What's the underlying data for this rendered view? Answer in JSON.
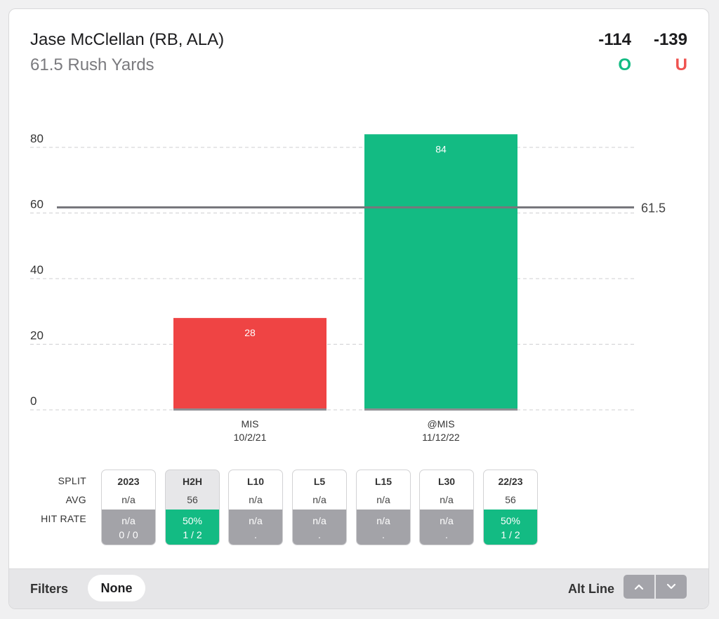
{
  "header": {
    "player": "Jase McClellan (RB, ALA)",
    "prop": "61.5 Rush Yards",
    "odds_over": "-114",
    "odds_under": "-139",
    "over_label": "O",
    "under_label": "U"
  },
  "chart_data": {
    "type": "bar",
    "categories": [
      "MIS",
      "@MIS"
    ],
    "dates": [
      "10/2/21",
      "11/12/22"
    ],
    "values": [
      28,
      84
    ],
    "bar_colors": [
      "#ef4444",
      "#13bb83"
    ],
    "line_value": 61.5,
    "line_label": "61.5",
    "ylim": [
      0,
      84
    ],
    "yticks": [
      0,
      20,
      40,
      60,
      80
    ],
    "grid": true
  },
  "splits": {
    "row_labels": {
      "split": "SPLIT",
      "avg": "AVG",
      "hit_rate": "HIT RATE"
    },
    "items": [
      {
        "label": "2023",
        "avg": "n/a",
        "pct": "n/a",
        "ratio": "0 / 0",
        "status": "neutral",
        "active": false
      },
      {
        "label": "H2H",
        "avg": "56",
        "pct": "50%",
        "ratio": "1 / 2",
        "status": "hit",
        "active": true
      },
      {
        "label": "L10",
        "avg": "n/a",
        "pct": "n/a",
        "ratio": ".",
        "status": "neutral",
        "active": false
      },
      {
        "label": "L5",
        "avg": "n/a",
        "pct": "n/a",
        "ratio": ".",
        "status": "neutral",
        "active": false
      },
      {
        "label": "L15",
        "avg": "n/a",
        "pct": "n/a",
        "ratio": ".",
        "status": "neutral",
        "active": false
      },
      {
        "label": "L30",
        "avg": "n/a",
        "pct": "n/a",
        "ratio": ".",
        "status": "neutral",
        "active": false
      },
      {
        "label": "22/23",
        "avg": "56",
        "pct": "50%",
        "ratio": "1 / 2",
        "status": "hit",
        "active": false
      }
    ]
  },
  "filters": {
    "label": "Filters",
    "value": "None",
    "alt_line_label": "Alt Line",
    "up_icon": "chevron-up-icon",
    "down_icon": "chevron-down-icon"
  },
  "colors": {
    "over": "#13bb83",
    "under": "#ef5350",
    "hit": "#13bb83",
    "neutral": "#a3a3a8",
    "line": "#77777c"
  }
}
